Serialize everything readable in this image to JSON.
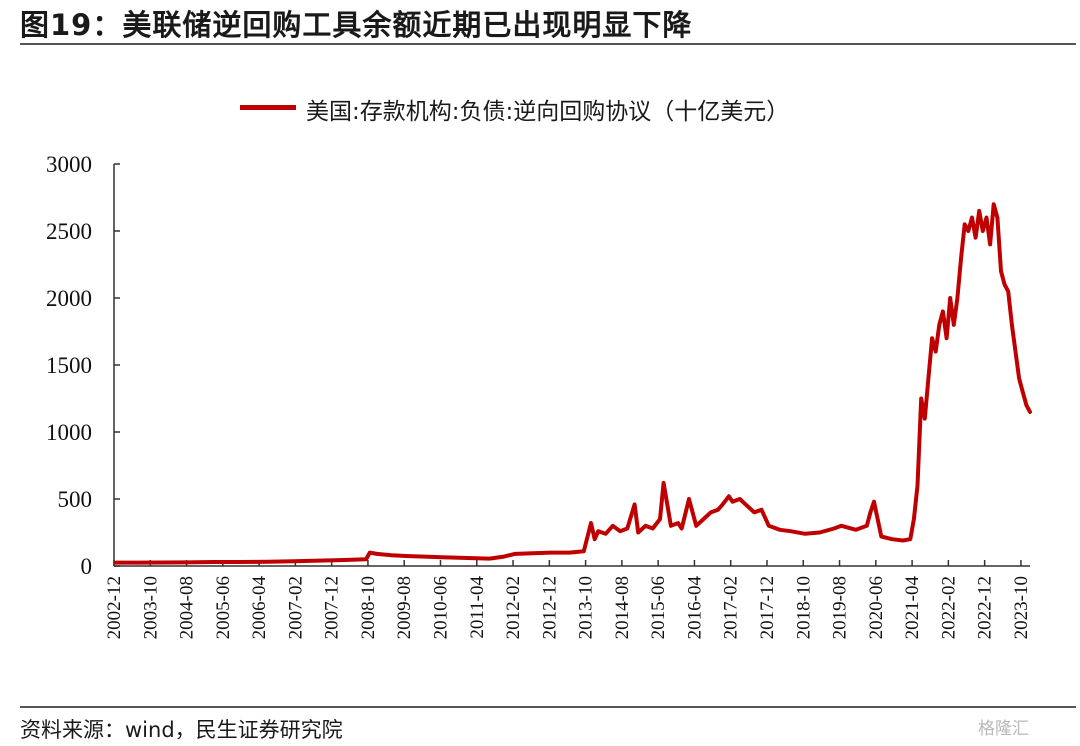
{
  "header": {
    "figure_title": "图19：美联储逆回购工具余额近期已出现明显下降"
  },
  "footer": {
    "source": "资料来源：wind，民生证券研究院",
    "watermark": "格隆汇"
  },
  "colors": {
    "series": "#c00000",
    "axis": "#333333"
  },
  "chart_data": {
    "type": "line",
    "title": "",
    "xlabel": "",
    "ylabel": "",
    "ylim": [
      0,
      3000
    ],
    "yticks": [
      0,
      500,
      1000,
      1500,
      2000,
      2500,
      3000
    ],
    "xticks": [
      "2002-12",
      "2003-10",
      "2004-08",
      "2005-06",
      "2006-04",
      "2007-02",
      "2007-12",
      "2008-10",
      "2009-08",
      "2010-06",
      "2011-04",
      "2012-02",
      "2012-12",
      "2013-10",
      "2014-08",
      "2015-06",
      "2016-04",
      "2017-02",
      "2017-12",
      "2018-10",
      "2019-08",
      "2020-06",
      "2021-04",
      "2022-02",
      "2022-12",
      "2023-10"
    ],
    "grid": false,
    "legend_position": "top-center",
    "series": [
      {
        "name": "美国:存款机构:负债:逆向回购协议（十亿美元）",
        "x": [
          "2002-12",
          "2003-06",
          "2004-01",
          "2004-08",
          "2005-03",
          "2005-10",
          "2006-06",
          "2007-01",
          "2007-08",
          "2008-03",
          "2008-09",
          "2008-10",
          "2008-12",
          "2009-04",
          "2009-08",
          "2010-01",
          "2010-06",
          "2011-01",
          "2011-07",
          "2011-11",
          "2012-02",
          "2012-07",
          "2012-12",
          "2013-05",
          "2013-09",
          "2013-11",
          "2013-12",
          "2014-01",
          "2014-03",
          "2014-05",
          "2014-07",
          "2014-09",
          "2014-11",
          "2014-12",
          "2015-02",
          "2015-04",
          "2015-06",
          "2015-07",
          "2015-09",
          "2015-11",
          "2015-12",
          "2016-02",
          "2016-04",
          "2016-06",
          "2016-08",
          "2016-10",
          "2016-11",
          "2017-01",
          "2017-02",
          "2017-04",
          "2017-06",
          "2017-08",
          "2017-10",
          "2017-12",
          "2018-03",
          "2018-06",
          "2018-10",
          "2019-02",
          "2019-06",
          "2019-08",
          "2019-12",
          "2020-03",
          "2020-04",
          "2020-05",
          "2020-07",
          "2020-10",
          "2021-01",
          "2021-03",
          "2021-04",
          "2021-05",
          "2021-06",
          "2021-07",
          "2021-08",
          "2021-09",
          "2021-10",
          "2021-11",
          "2021-12",
          "2022-01",
          "2022-02",
          "2022-03",
          "2022-04",
          "2022-05",
          "2022-06",
          "2022-07",
          "2022-08",
          "2022-09",
          "2022-10",
          "2022-11",
          "2022-12",
          "2023-01",
          "2023-02",
          "2023-03",
          "2023-04",
          "2023-05",
          "2023-06",
          "2023-07",
          "2023-08",
          "2023-09",
          "2023-10",
          "2023-11",
          "2023-12"
        ],
        "values": [
          25,
          25,
          26,
          27,
          30,
          30,
          32,
          35,
          40,
          45,
          50,
          100,
          90,
          80,
          75,
          70,
          65,
          60,
          55,
          70,
          90,
          95,
          100,
          100,
          110,
          320,
          200,
          260,
          240,
          300,
          260,
          280,
          460,
          250,
          300,
          280,
          350,
          620,
          300,
          320,
          280,
          500,
          300,
          350,
          400,
          420,
          450,
          520,
          480,
          500,
          450,
          400,
          420,
          300,
          270,
          260,
          240,
          250,
          280,
          300,
          270,
          300,
          400,
          480,
          220,
          200,
          190,
          200,
          350,
          600,
          1250,
          1100,
          1400,
          1700,
          1600,
          1800,
          1900,
          1700,
          2000,
          1800,
          2000,
          2300,
          2550,
          2500,
          2600,
          2450,
          2650,
          2500,
          2600,
          2400,
          2700,
          2600,
          2200,
          2100,
          2050,
          1800,
          1600,
          1400,
          1300,
          1200,
          1150
        ]
      }
    ]
  }
}
